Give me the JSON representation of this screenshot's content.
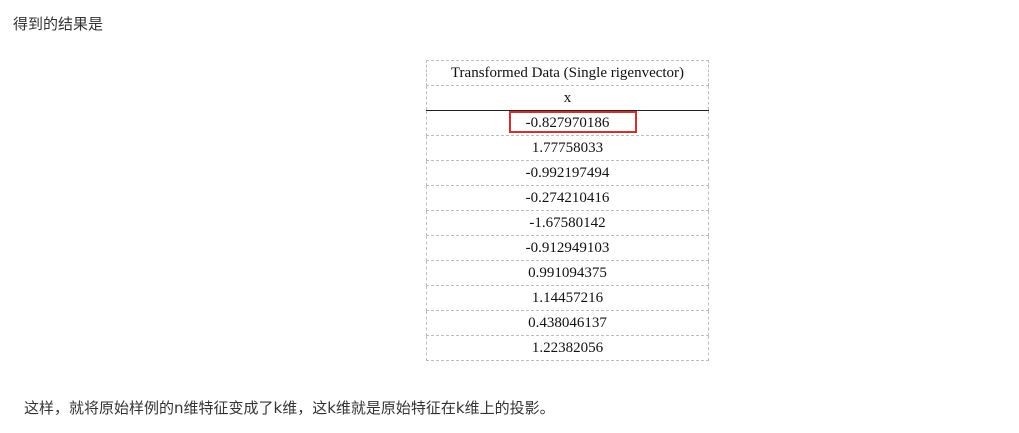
{
  "intro_text": "得到的结果是",
  "table": {
    "title": "Transformed Data (Single rigenvector)",
    "column_header": "x",
    "rows": [
      "-0.827970186",
      "1.77758033",
      "-0.992197494",
      "-0.274210416",
      "-1.67580142",
      "-0.912949103",
      "0.991094375",
      "1.14457216",
      "0.438046137",
      "1.22382056"
    ],
    "highlight_color": "#d32f2f"
  },
  "outro_text": "这样，就将原始样例的n维特征变成了k维，这k维就是原始特征在k维上的投影。"
}
